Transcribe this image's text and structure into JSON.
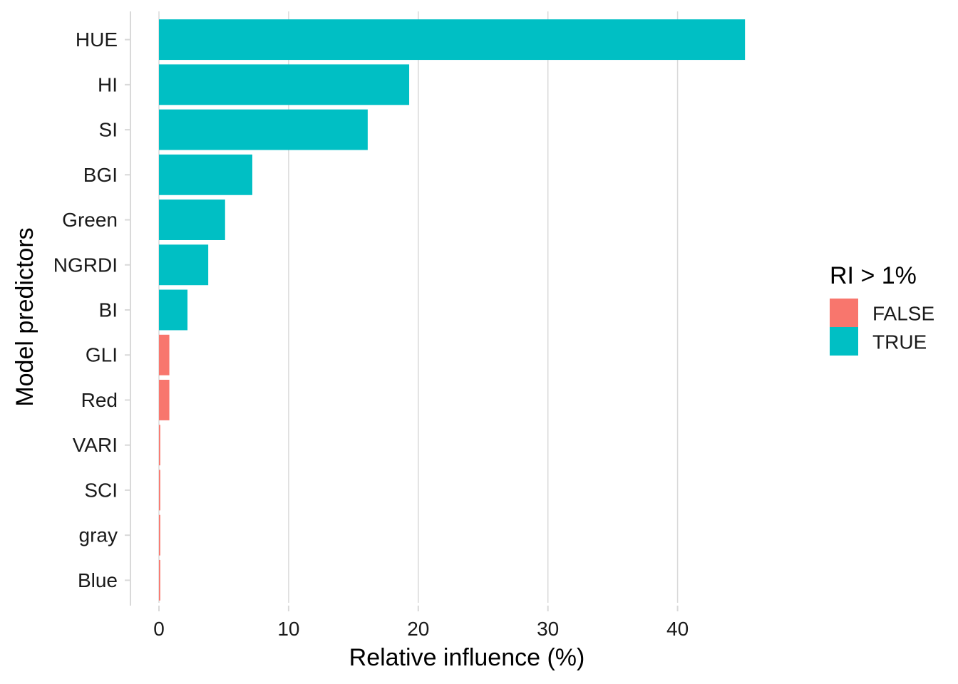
{
  "chart_data": {
    "type": "bar",
    "orientation": "horizontal",
    "categories": [
      "HUE",
      "HI",
      "SI",
      "BGI",
      "Green",
      "NGRDI",
      "BI",
      "GLI",
      "Red",
      "VARI",
      "SCI",
      "gray",
      "Blue"
    ],
    "values": [
      45.2,
      19.3,
      16.1,
      7.2,
      5.1,
      3.8,
      2.2,
      0.8,
      0.8,
      0.1,
      0.1,
      0.1,
      0.1
    ],
    "groups": [
      "TRUE",
      "TRUE",
      "TRUE",
      "TRUE",
      "TRUE",
      "TRUE",
      "TRUE",
      "FALSE",
      "FALSE",
      "FALSE",
      "FALSE",
      "FALSE",
      "FALSE"
    ],
    "xlabel": "Relative influence (%)",
    "ylabel": "Model predictors",
    "xticks": [
      0,
      10,
      20,
      30,
      40
    ],
    "xlim": [
      -2.2,
      47.5
    ],
    "grid": "vertical",
    "legend": {
      "title": "RI > 1%",
      "placement": "right",
      "entries": [
        {
          "label": "FALSE",
          "color": "#F8766D"
        },
        {
          "label": "TRUE",
          "color": "#00BFC4"
        }
      ]
    },
    "colors": {
      "FALSE": "#F8766D",
      "TRUE": "#00BFC4",
      "grid": "#d9d9d9",
      "axis": "#d9d9d9"
    }
  }
}
